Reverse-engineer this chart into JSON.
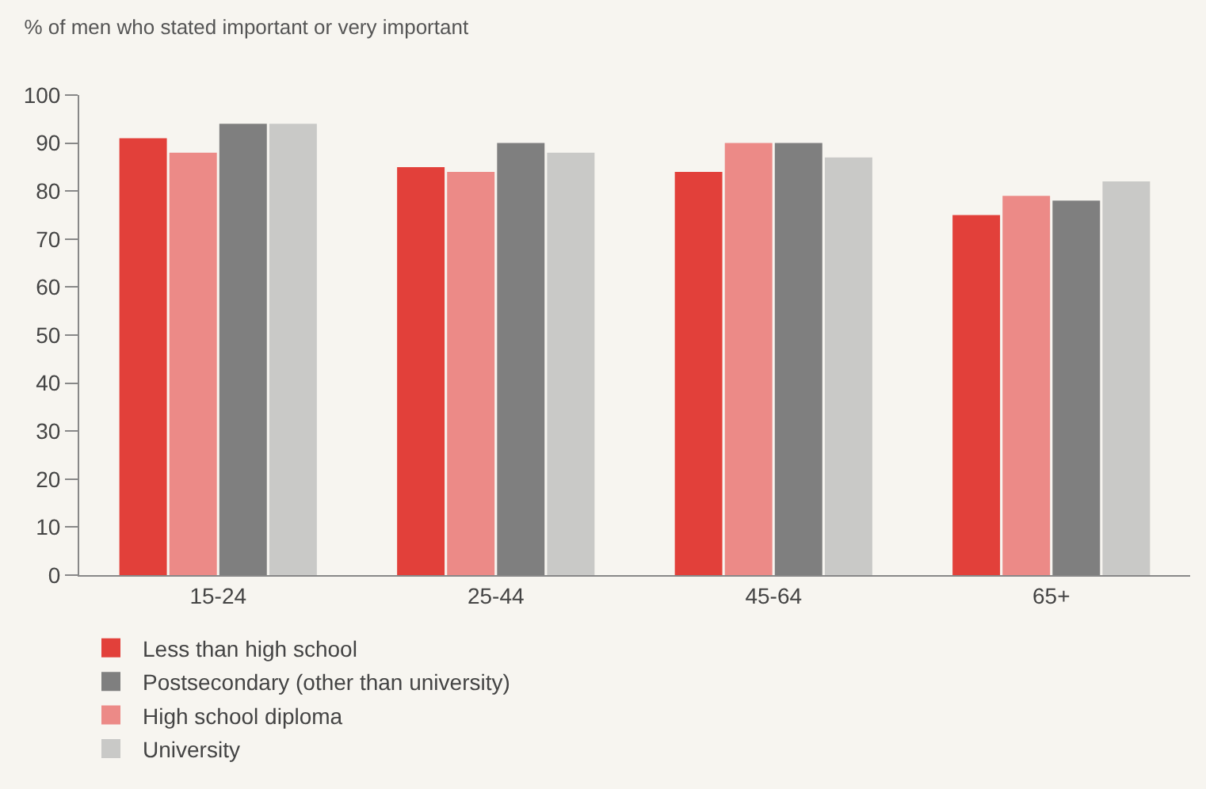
{
  "chart_data": {
    "type": "bar",
    "title": "% of men who stated important or very important",
    "categories": [
      "15-24",
      "25-44",
      "45-64",
      "65+"
    ],
    "series": [
      {
        "name": "Less than high school",
        "color": "#e2403a",
        "values": [
          91,
          85,
          84,
          75
        ]
      },
      {
        "name": "High school diploma",
        "color": "#ec8a87",
        "values": [
          88,
          84,
          90,
          79
        ]
      },
      {
        "name": "Postsecondary (other than university)",
        "color": "#7f7f7f",
        "values": [
          94,
          90,
          90,
          78
        ]
      },
      {
        "name": "University",
        "color": "#c9c9c7",
        "values": [
          94,
          88,
          87,
          82
        ]
      }
    ],
    "ylim": [
      0,
      100
    ],
    "yticks": [
      0,
      10,
      20,
      30,
      40,
      50,
      60,
      70,
      80,
      90,
      100
    ],
    "grid": false,
    "legend": "bottom"
  }
}
